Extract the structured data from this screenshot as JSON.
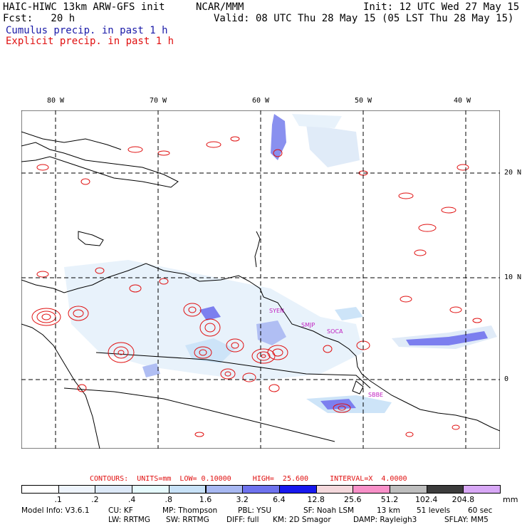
{
  "header": {
    "model": "HAIC-HIWC 13km ARW-GFS init",
    "org": "NCAR/MMM",
    "init": "Init: 12 UTC Wed 27 May 15",
    "fcst": "Fcst:   20 h",
    "valid": "Valid: 08 UTC Thu 28 May 15 (05 LST Thu 28 May 15)",
    "cumulus_label": "Cumulus precip. in past 1 h",
    "explicit_label": "Explicit precip. in past 1 h"
  },
  "map": {
    "lon_labels": [
      "80 W",
      "70 W",
      "60 W",
      "50 W",
      "40 W"
    ],
    "lat_labels": [
      "20 N",
      "10 N",
      "0"
    ],
    "stations": [
      "SYEN",
      "SMJP",
      "SOCA",
      "SBBE"
    ]
  },
  "contours": {
    "text": "CONTOURS:  UNITS=mm  LOW= 0.10000     HIGH=  25.600     INTERVAL=X  4.0000"
  },
  "colorbar": {
    "labels": [
      ".1",
      ".2",
      ".4",
      ".8",
      "1.6",
      "3.2",
      "6.4",
      "12.8",
      "25.6",
      "51.2",
      "102.4",
      "204.8"
    ],
    "unit": "mm",
    "colors": [
      "#ffffff",
      "#eef4fc",
      "#dde9f8",
      "#e6fafd",
      "#c8e2f8",
      "#a8b8f2",
      "#6e72ee",
      "#1818ee",
      "#f4d8dc",
      "#f890c8",
      "#bebebe",
      "#3c3c3c",
      "#d8a8f6"
    ]
  },
  "footer": {
    "line1": [
      "Model Info: V3.6.1",
      "CU: KF",
      "MP: Thompson",
      "PBL: YSU",
      "SF: Noah LSM",
      "13 km",
      "51 levels",
      "60 sec"
    ],
    "line2": [
      "LW: RRTMG",
      "SW: RRTMG",
      "DIFF: full",
      "KM: 2D Smagor",
      "DAMP: Rayleigh3",
      "SFLAY: MM5"
    ]
  }
}
